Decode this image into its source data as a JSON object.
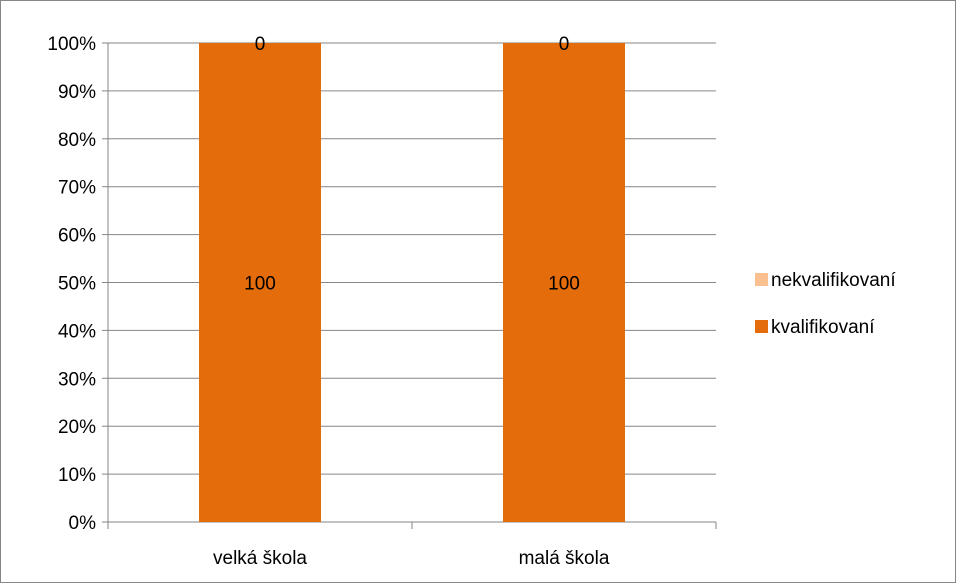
{
  "chart_data": {
    "type": "bar",
    "stacked": "percent",
    "categories": [
      "velká škola",
      "malá škola"
    ],
    "series": [
      {
        "name": "kvalifikovaní",
        "values": [
          100,
          100
        ],
        "data_labels": [
          "100",
          "100"
        ],
        "color": "#E46C0A"
      },
      {
        "name": "nekvalifikovaní",
        "values": [
          0,
          0
        ],
        "data_labels": [
          "0",
          "0"
        ],
        "color": "#FAC090"
      }
    ],
    "y_ticks": [
      "0%",
      "10%",
      "20%",
      "30%",
      "40%",
      "50%",
      "60%",
      "70%",
      "80%",
      "90%",
      "100%"
    ],
    "ylim": [
      0,
      100
    ],
    "grid": true,
    "legend": {
      "position": "right",
      "entries": [
        {
          "label": "nekvalifikovaní",
          "color": "#FAC090"
        },
        {
          "label": "kvalifikovaní",
          "color": "#E46C0A"
        }
      ]
    }
  }
}
